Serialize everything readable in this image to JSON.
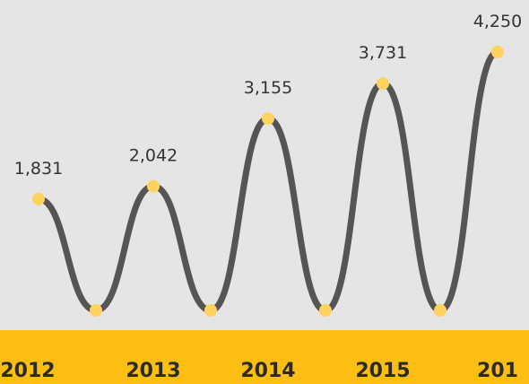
{
  "chart_data": {
    "type": "line",
    "categories": [
      "2012",
      null,
      "2013",
      null,
      "2014",
      null,
      "2015",
      null,
      "201"
    ],
    "series": [
      {
        "color": "#555555",
        "marker_color": "#fdd35e",
        "values": [
          1831,
          0,
          2042,
          0,
          3155,
          0,
          3731,
          0,
          4250
        ],
        "value_labels": [
          "1,831",
          null,
          "2,042",
          null,
          "3,155",
          null,
          "3,731",
          null,
          "4,250"
        ]
      }
    ],
    "band_color": "#fdbe14"
  }
}
